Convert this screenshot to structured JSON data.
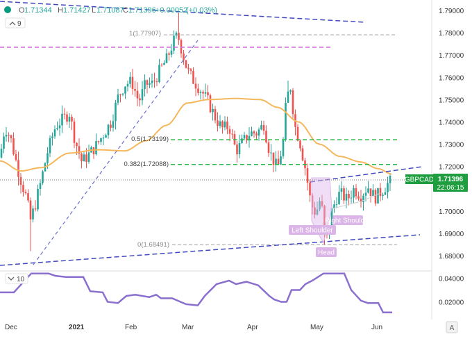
{
  "ohlc_bar": {
    "dot_color": "#089981",
    "open_label": "O",
    "open_value": "1.71344",
    "high_label": "H",
    "high_value": "1.71427",
    "low_label": "L",
    "low_value": "1.71087",
    "close_label": "C",
    "close_value": "1.71396",
    "change_value": "+0.00052",
    "change_pct": "(+0.03%)",
    "panel_count": "9"
  },
  "chart_data": [
    {
      "type": "candlestick",
      "symbol": "GBPCAD",
      "last_price": "1.71396",
      "countdown": "22:06:15",
      "ylim": [
        1.675,
        1.795
      ],
      "y_ticks": [
        "1.79000",
        "1.78000",
        "1.77000",
        "1.76000",
        "1.75000",
        "1.74000",
        "1.73000",
        "1.72000",
        "1.71000",
        "1.70000",
        "1.69000",
        "1.68000"
      ],
      "x_ticks": [
        "Dec",
        "2021",
        "Feb",
        "Mar",
        "Apr",
        "May",
        "Jun"
      ],
      "colors": {
        "up": "#26a69a",
        "down": "#ef5350",
        "ma": "#f5b75c",
        "trend": "#4048c0",
        "fib_green": "#2fb84a",
        "fib_gray": "#9e9e9e",
        "resistance": "#d46ad9",
        "last_label": "#1e9e3e",
        "annotation": "#dcb5e8",
        "indicator": "#8b6fcf"
      },
      "moving_average": {
        "present": true
      },
      "fibonacci_levels": [
        {
          "label": "1(1.77907)",
          "ratio": "1",
          "price": 1.77907
        },
        {
          "label": "0.5(1.73199)",
          "ratio": "0.5",
          "price": 1.73199
        },
        {
          "label": "0.382(1.72088)",
          "ratio": "0.382",
          "price": 1.72088
        },
        {
          "label": "0(1.68491)",
          "ratio": "0",
          "price": 1.68491
        }
      ],
      "horizontal_levels": [
        1.7735
      ],
      "annotations": [
        "Right Shoulder",
        "Left Shoulder",
        "Head"
      ]
    },
    {
      "type": "line",
      "indicator_label": "10",
      "y_ticks": [
        "0.04000",
        "0.02000"
      ],
      "x_ticks": [
        "Dec",
        "2021",
        "Feb",
        "Mar",
        "Apr",
        "May",
        "Jun"
      ]
    }
  ]
}
